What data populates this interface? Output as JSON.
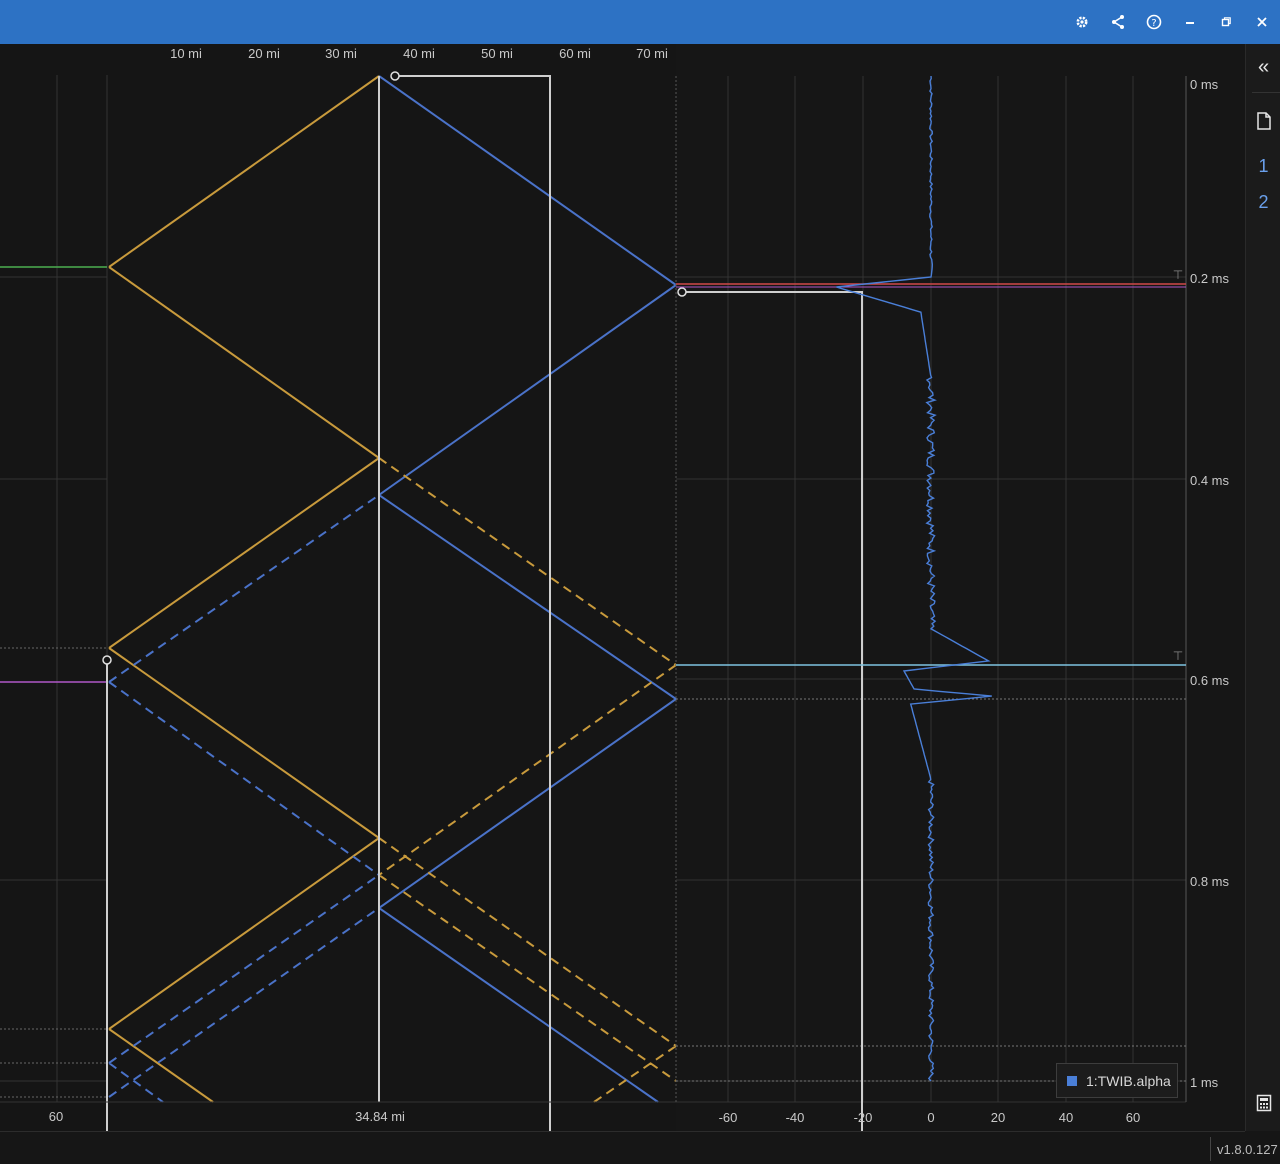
{
  "toolbar": {
    "icons": [
      "gear-icon",
      "share-icon",
      "help-icon",
      "minimize-icon",
      "restore-icon",
      "close-icon"
    ]
  },
  "sidebar": {
    "collapse_glyph": "«",
    "items": [
      {
        "label": "1",
        "icon": "document-icon"
      },
      {
        "label": "2"
      }
    ],
    "calculator_icon": "calculator-icon"
  },
  "lattice_panel": {
    "top_axis_ticks": [
      "10 mi",
      "20 mi",
      "30 mi",
      "40 mi",
      "50 mi",
      "60 mi",
      "70 mi"
    ],
    "bottom_left_tick": "60",
    "cursor_position_label": "34.84 mi",
    "colors": {
      "forward": "#c89a3c",
      "backward": "#4a72c8",
      "cursor": "#cfcfcf"
    }
  },
  "waveform_panel": {
    "x_ticks": [
      "-60",
      "-40",
      "-20",
      "0",
      "20",
      "40",
      "60"
    ],
    "time_ticks": [
      "0 ms",
      "0.2 ms",
      "0.4 ms",
      "0.6 ms",
      "0.8 ms",
      "1 ms"
    ],
    "legend": {
      "label": "1:TWIB.alpha",
      "color": "#4a7fd8"
    },
    "marker_colors": {
      "red": "#d04848",
      "cyan": "#7fc3e0",
      "magenta": "#b058c8"
    }
  },
  "chart_data": {
    "type": "line",
    "title": "",
    "xlabel": "",
    "ylabel": "",
    "xlim": [
      -75,
      75
    ],
    "ylim": [
      0,
      1.0
    ],
    "y_axis_unit": "ms",
    "series": [
      {
        "values": [
          [
            0,
            0
          ],
          [
            0,
            0.2
          ],
          [
            -28,
            0.21
          ],
          [
            -3,
            0.235
          ],
          [
            0,
            0.3
          ],
          [
            0,
            0.55
          ],
          [
            17,
            0.582
          ],
          [
            -8,
            0.592
          ],
          [
            -5,
            0.61
          ],
          [
            18,
            0.617
          ],
          [
            -6,
            0.625
          ],
          [
            0,
            0.7
          ],
          [
            0,
            1.0
          ]
        ]
      }
    ]
  },
  "version": "v1.8.0.127"
}
